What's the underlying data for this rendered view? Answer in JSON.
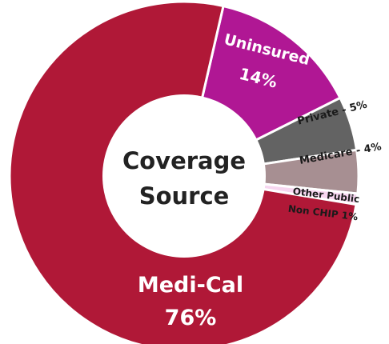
{
  "chart_data": {
    "type": "pie",
    "variant": "donut",
    "center_label": [
      "Coverage",
      "Source"
    ],
    "slices": [
      {
        "label": "Uninsured",
        "value": 14,
        "value_text": "14%",
        "color": "#b01794",
        "label_color": "#ffffff"
      },
      {
        "label": "Private - 5%",
        "value": 5,
        "color": "#636363",
        "label_color": "#1a1a1a"
      },
      {
        "label": "Medicare - 4%",
        "value": 4,
        "color": "#a78f92",
        "label_color": "#1a1a1a"
      },
      {
        "label": "Other Public Non CHIP 1%",
        "label_lines": [
          "Other Public",
          "Non CHIP 1%"
        ],
        "value": 1,
        "color": "#f7d6f0",
        "label_color": "#1a1a1a"
      },
      {
        "label": "Medi-Cal",
        "value": 76,
        "value_text": "76%",
        "color": "#b01837",
        "label_color": "#ffffff"
      }
    ]
  }
}
